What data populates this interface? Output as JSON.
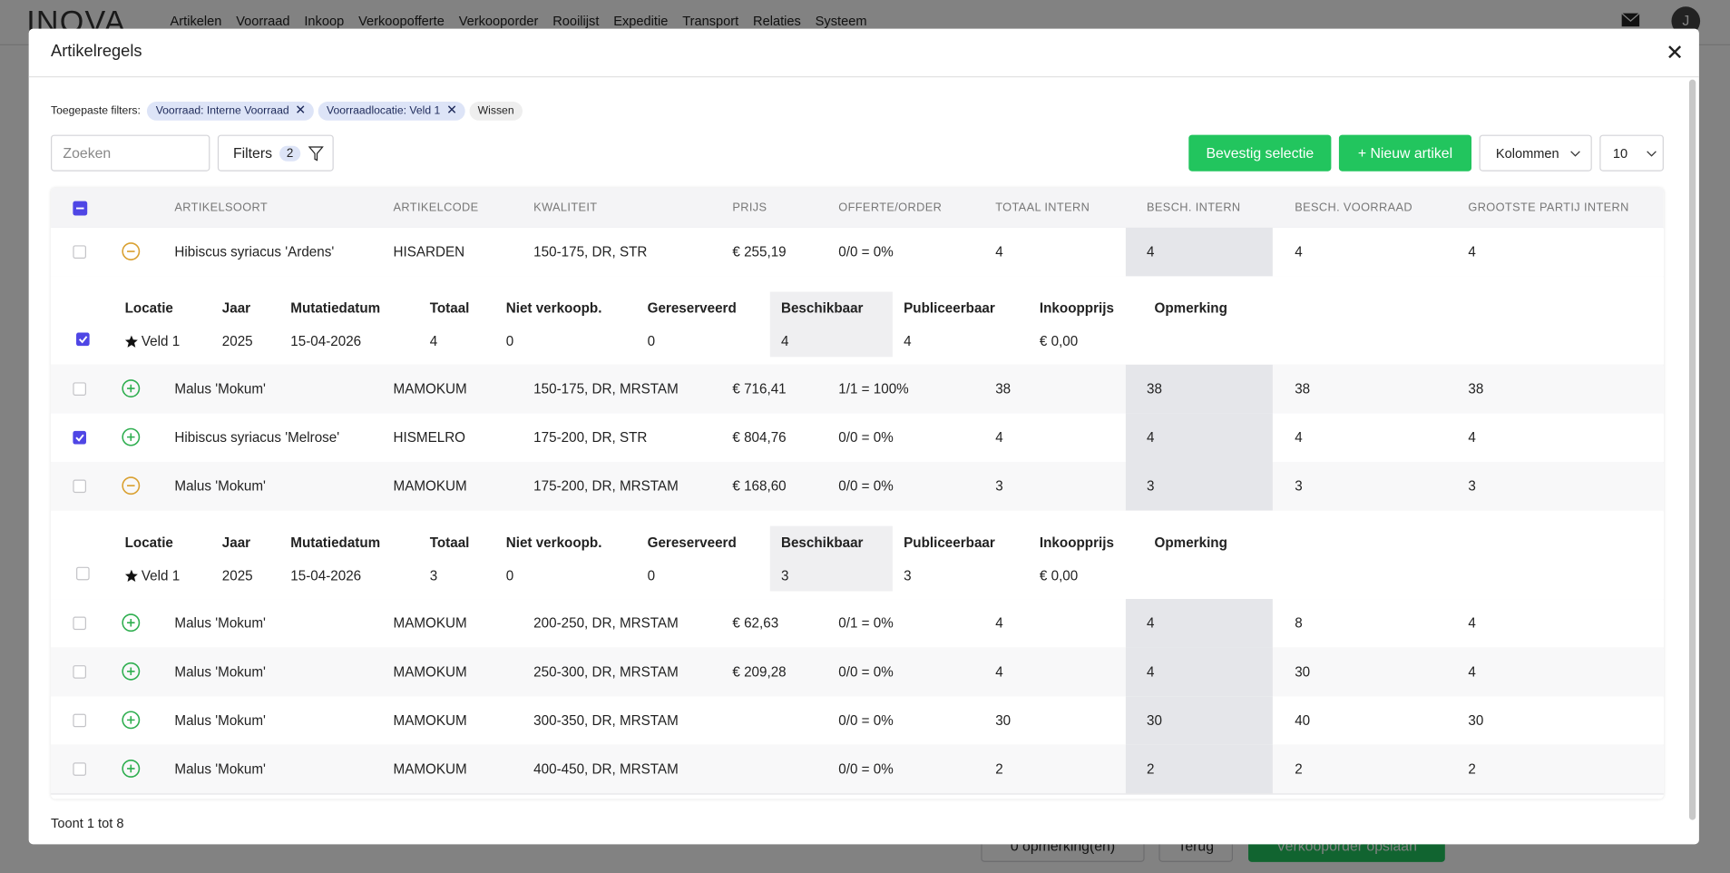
{
  "nav": {
    "logo": "INOVA",
    "items": [
      "Artikelen",
      "Voorraad",
      "Inkoop",
      "Verkoopofferte",
      "Verkooporder",
      "Rooilijst",
      "Expeditie",
      "Transport",
      "Relaties",
      "Systeem"
    ],
    "avatar": "J"
  },
  "page_buttons": {
    "remarks": "0 opmerking(en)",
    "back": "Terug",
    "save": "Verkooporder opslaan"
  },
  "modal": {
    "title": "Artikelregels"
  },
  "filters": {
    "label": "Toegepaste filters:",
    "chips": [
      "Voorraad: Interne Voorraad",
      "Voorraadlocatie: Veld 1"
    ],
    "clear": "Wissen"
  },
  "toolbar": {
    "search_placeholder": "Zoeken",
    "filters_button": "Filters",
    "filters_count": 2,
    "confirm": "Bevestig selectie",
    "new_article": "+ Nieuw artikel",
    "columns": "Kolommen",
    "page_size": 10
  },
  "table": {
    "headers": [
      "ARTIKELSOORT",
      "ARTIKELCODE",
      "KWALITEIT",
      "PRIJS",
      "OFFERTE/ORDER",
      "TOTAAL INTERN",
      "BESCH. INTERN",
      "BESCH. VOORRAAD",
      "GROOTSTE PARTIJ INTERN"
    ],
    "detail_headers": [
      "Locatie",
      "Jaar",
      "Mutatiedatum",
      "Totaal",
      "Niet verkoopb.",
      "Gereserveerd",
      "Beschikbaar",
      "Publiceerbaar",
      "Inkoopprijs",
      "Opmerking"
    ],
    "rows": [
      {
        "selected": false,
        "expanded": true,
        "cells": [
          "Hibiscus syriacus 'Ardens'",
          "HISARDEN",
          "150-175, DR, STR",
          "€ 255,19",
          "0/0 = 0%",
          "4",
          "4",
          "4",
          "4"
        ],
        "detail": {
          "selected": true,
          "cells": [
            "Veld 1",
            "2025",
            "15-04-2026",
            "4",
            "0",
            "0",
            "4",
            "4",
            "€ 0,00"
          ]
        }
      },
      {
        "selected": false,
        "expanded": false,
        "cells": [
          "Malus 'Mokum'",
          "MAMOKUM",
          "150-175, DR, MRSTAM",
          "€ 716,41",
          "1/1 = 100%",
          "38",
          "38",
          "38",
          "38"
        ]
      },
      {
        "selected": true,
        "expanded": false,
        "cells": [
          "Hibiscus syriacus 'Melrose'",
          "HISMELRO",
          "175-200, DR, STR",
          "€ 804,76",
          "0/0 = 0%",
          "4",
          "4",
          "4",
          "4"
        ]
      },
      {
        "selected": false,
        "expanded": true,
        "cells": [
          "Malus 'Mokum'",
          "MAMOKUM",
          "175-200, DR, MRSTAM",
          "€ 168,60",
          "0/0 = 0%",
          "3",
          "3",
          "3",
          "3"
        ],
        "detail": {
          "selected": false,
          "cells": [
            "Veld 1",
            "2025",
            "15-04-2026",
            "3",
            "0",
            "0",
            "3",
            "3",
            "€ 0,00"
          ]
        }
      },
      {
        "selected": false,
        "expanded": false,
        "cells": [
          "Malus 'Mokum'",
          "MAMOKUM",
          "200-250, DR, MRSTAM",
          "€ 62,63",
          "0/1 = 0%",
          "4",
          "4",
          "8",
          "4"
        ]
      },
      {
        "selected": false,
        "expanded": false,
        "cells": [
          "Malus 'Mokum'",
          "MAMOKUM",
          "250-300, DR, MRSTAM",
          "€ 209,28",
          "0/0 = 0%",
          "4",
          "4",
          "30",
          "4"
        ]
      },
      {
        "selected": false,
        "expanded": false,
        "cells": [
          "Malus 'Mokum'",
          "MAMOKUM",
          "300-350, DR, MRSTAM",
          null,
          "0/0 = 0%",
          "30",
          "30",
          "40",
          "30"
        ]
      },
      {
        "selected": false,
        "expanded": false,
        "cells": [
          "Malus 'Mokum'",
          "MAMOKUM",
          "400-450, DR, MRSTAM",
          null,
          "0/0 = 0%",
          "2",
          "2",
          "2",
          "2"
        ]
      }
    ]
  },
  "footer": {
    "summary": "Toont 1 tot 8"
  }
}
